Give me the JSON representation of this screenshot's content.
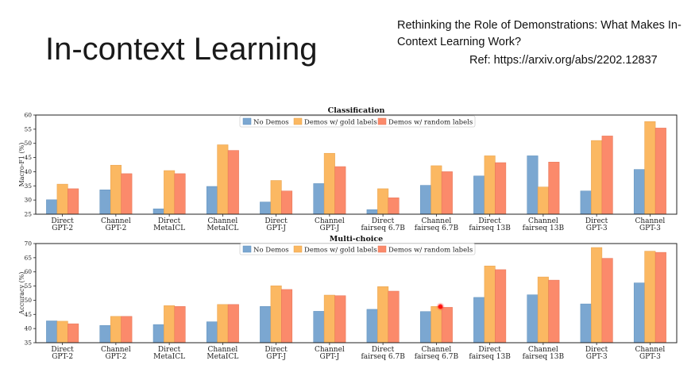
{
  "slide": {
    "title": "In-context Learning",
    "paper_title": "Rethinking the Role of Demonstrations: What Makes In-Context Learning Work?",
    "reference": "Ref: https://arxiv.org/abs/2202.12837"
  },
  "colors": {
    "no_demos": "#7ba7d1",
    "gold": "#fbb862",
    "random": "#fb8a6b"
  },
  "chart_data": [
    {
      "type": "bar",
      "title": "Classification",
      "ylabel": "Macro-F1 (%)",
      "ylim": [
        25,
        60
      ],
      "yticks": [
        25,
        30,
        35,
        40,
        45,
        50,
        55,
        60
      ],
      "legend_placement": "top-center",
      "categories": [
        [
          "Direct",
          "GPT-2"
        ],
        [
          "Channel",
          "GPT-2"
        ],
        [
          "Direct",
          "MetaICL"
        ],
        [
          "Channel",
          "MetaICL"
        ],
        [
          "Direct",
          "GPT-J"
        ],
        [
          "Channel",
          "GPT-J"
        ],
        [
          "Direct",
          "fairseq 6.7B"
        ],
        [
          "Channel",
          "fairseq 6.7B"
        ],
        [
          "Direct",
          "fairseq 13B"
        ],
        [
          "Channel",
          "fairseq 13B"
        ],
        [
          "Direct",
          "GPT-3"
        ],
        [
          "Channel",
          "GPT-3"
        ]
      ],
      "series": [
        {
          "name": "No Demos",
          "values": [
            30.1,
            33.6,
            26.9,
            34.8,
            29.3,
            35.8,
            26.6,
            35.2,
            38.5,
            45.6,
            33.2,
            40.8
          ]
        },
        {
          "name": "Demos w/ gold labels",
          "values": [
            35.6,
            42.3,
            40.4,
            49.5,
            36.9,
            46.5,
            34.0,
            42.1,
            45.6,
            34.6,
            51.0,
            57.7
          ]
        },
        {
          "name": "Demos w/ random labels",
          "values": [
            34.0,
            39.3,
            39.3,
            47.5,
            33.2,
            41.8,
            30.8,
            40.0,
            43.2,
            43.4,
            52.6,
            55.4
          ]
        }
      ]
    },
    {
      "type": "bar",
      "title": "Multi-choice",
      "ylabel": "Accuracy (%)",
      "ylim": [
        35,
        70
      ],
      "yticks": [
        35,
        40,
        45,
        50,
        55,
        60,
        65,
        70
      ],
      "legend_placement": "top-center",
      "categories": [
        [
          "Direct",
          "GPT-2"
        ],
        [
          "Channel",
          "GPT-2"
        ],
        [
          "Direct",
          "MetaICL"
        ],
        [
          "Channel",
          "MetaICL"
        ],
        [
          "Direct",
          "GPT-J"
        ],
        [
          "Channel",
          "GPT-J"
        ],
        [
          "Direct",
          "fairseq 6.7B"
        ],
        [
          "Channel",
          "fairseq 6.7B"
        ],
        [
          "Direct",
          "fairseq 13B"
        ],
        [
          "Channel",
          "fairseq 13B"
        ],
        [
          "Direct",
          "GPT-3"
        ],
        [
          "Channel",
          "GPT-3"
        ]
      ],
      "series": [
        {
          "name": "No Demos",
          "values": [
            42.7,
            41.1,
            41.4,
            42.4,
            47.8,
            46.1,
            46.8,
            46.0,
            51.0,
            51.9,
            48.7,
            56.1
          ]
        },
        {
          "name": "Demos w/ gold labels",
          "values": [
            42.6,
            44.3,
            48.1,
            48.5,
            55.1,
            51.8,
            54.8,
            47.8,
            62.1,
            58.2,
            68.6,
            67.3
          ]
        },
        {
          "name": "Demos w/ random labels",
          "values": [
            41.7,
            44.3,
            47.8,
            48.5,
            53.8,
            51.6,
            53.2,
            47.5,
            60.8,
            57.1,
            64.8,
            66.9
          ]
        }
      ]
    }
  ]
}
